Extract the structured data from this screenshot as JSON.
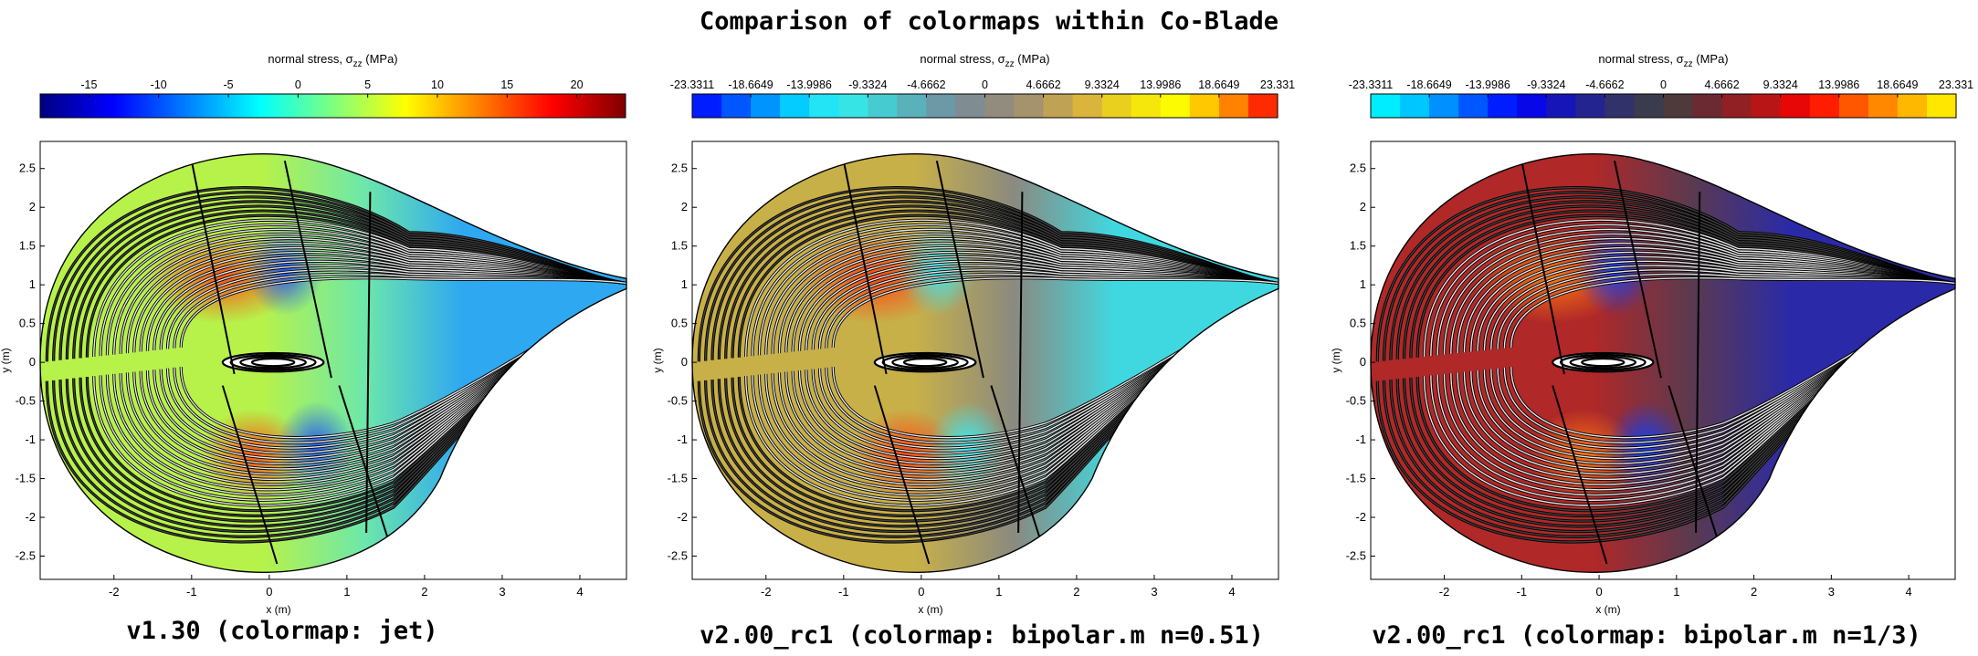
{
  "figure_title": "Comparison of colormaps within Co-Blade",
  "chart_data": [
    {
      "type": "heatmap",
      "caption": "v1.30 (colormap: jet)",
      "colorbar": {
        "title": "normal stress, σzz (MPa)",
        "ticks": [
          "-15",
          "-10",
          "-5",
          "0",
          "5",
          "10",
          "15",
          "20"
        ],
        "tick_values": [
          -15,
          -10,
          -5,
          0,
          5,
          10,
          15,
          20
        ],
        "range": [
          -18.5,
          23.5
        ],
        "colors": [
          "#00007f",
          "#0000ff",
          "#007fff",
          "#00ffff",
          "#7fff7f",
          "#ffff00",
          "#ff7f00",
          "#ff0000",
          "#7f0000"
        ],
        "discrete": false
      },
      "field_colors": {
        "left": "#b7f24a",
        "mid": "#6ee8a8",
        "right": "#2ea8f0",
        "hot": "#ff4a10",
        "cold": "#1a50ff"
      },
      "xlabel": "x (m)",
      "ylabel": "y (m)",
      "xticks": [
        "-2",
        "-1",
        "0",
        "1",
        "2",
        "3",
        "4"
      ],
      "yticks": [
        "2.5",
        "2",
        "1.5",
        "1",
        "0.5",
        "0",
        "-0.5",
        "-1",
        "-1.5",
        "-2",
        "-2.5"
      ],
      "xlim": [
        -2.95,
        4.6
      ],
      "ylim": [
        -2.8,
        2.85
      ]
    },
    {
      "type": "heatmap",
      "caption": "v2.00_rc1 (colormap: bipolar.m n=0.51)",
      "colorbar": {
        "title": "normal stress, σzz (MPa)",
        "ticks": [
          "-23.3311",
          "-18.6649",
          "-13.9986",
          "-9.3324",
          "-4.6662",
          "0",
          "4.6662",
          "9.3324",
          "13.9986",
          "18.6649",
          "23.331"
        ],
        "tick_values": [
          -23.3311,
          -18.6649,
          -13.9986,
          -9.3324,
          -4.6662,
          0,
          4.6662,
          9.3324,
          13.9986,
          18.6649,
          23.331
        ],
        "range": [
          -23.3311,
          23.331
        ],
        "colors": [
          "#0000ff",
          "#0060ff",
          "#00c8ff",
          "#30f0f0",
          "#48c8cc",
          "#6a9aa8",
          "#888888",
          "#a8946a",
          "#d8b040",
          "#f0dc10",
          "#ffff00",
          "#ff9000",
          "#ff0000"
        ],
        "discrete": true,
        "steps": 20
      },
      "field_colors": {
        "left": "#c8b048",
        "mid": "#8a8a80",
        "right": "#40d8e0",
        "hot": "#ff4010",
        "cold": "#30f0ff"
      },
      "xlabel": "x (m)",
      "ylabel": "y (m)",
      "xticks": [
        "-2",
        "-1",
        "0",
        "1",
        "2",
        "3",
        "4"
      ],
      "yticks": [
        "2.5",
        "2",
        "1.5",
        "1",
        "0.5",
        "0",
        "-0.5",
        "-1",
        "-1.5",
        "-2",
        "-2.5"
      ],
      "xlim": [
        -2.95,
        4.6
      ],
      "ylim": [
        -2.8,
        2.85
      ]
    },
    {
      "type": "heatmap",
      "caption": "v2.00_rc1 (colormap: bipolar.m n=1/3)",
      "colorbar": {
        "title": "normal stress, σzz (MPa)",
        "ticks": [
          "-23.3311",
          "-18.6649",
          "-13.9986",
          "-9.3324",
          "-4.6662",
          "0",
          "4.6662",
          "9.3324",
          "13.9986",
          "18.6649",
          "23.331"
        ],
        "tick_values": [
          -23.3311,
          -18.6649,
          -13.9986,
          -9.3324,
          -4.6662,
          0,
          4.6662,
          9.3324,
          13.9986,
          18.6649,
          23.331
        ],
        "range": [
          -23.3311,
          23.331
        ],
        "colors": [
          "#00ffff",
          "#00c0ff",
          "#0060ff",
          "#0000ff",
          "#1818b0",
          "#303070",
          "#404040",
          "#702830",
          "#b01818",
          "#ff0000",
          "#ff6000",
          "#ffb000",
          "#ffff00"
        ],
        "discrete": true,
        "steps": 20
      },
      "field_colors": {
        "left": "#b02828",
        "mid": "#5a3a50",
        "right": "#2a2aa8",
        "hot": "#ff7a10",
        "cold": "#0a40ff"
      },
      "xlabel": "x (m)",
      "ylabel": "y (m)",
      "xticks": [
        "-2",
        "-1",
        "0",
        "1",
        "2",
        "3",
        "4"
      ],
      "yticks": [
        "2.5",
        "2",
        "1.5",
        "1",
        "0.5",
        "0",
        "-0.5",
        "-1",
        "-1.5",
        "-2",
        "-2.5"
      ],
      "xlim": [
        -2.95,
        4.6
      ],
      "ylim": [
        -2.8,
        2.85
      ]
    }
  ]
}
